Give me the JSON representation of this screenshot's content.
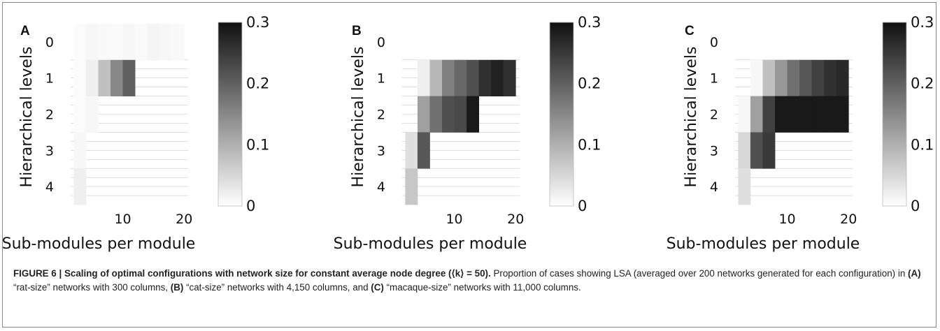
{
  "caption": {
    "bold_prefix": "FIGURE 6 | Scaling of optimal configurations with network size for constant average node degree (⟨k⟩ = 50).",
    "text_1": " Proportion of cases showing LSA (averaged over 200 networks generated for each configuration) in ",
    "label_a": "(A)",
    "text_2": " “rat-size” networks with 300 columns, ",
    "label_b": "(B)",
    "text_3": " “cat-size” networks with 4,150 columns, and ",
    "label_c": "(C)",
    "text_4": " “macaque-size” networks with 11,000 columns."
  },
  "colors": {
    "low": "#ffffff",
    "high": "#111111",
    "grid_line": "#a0a0a0"
  },
  "chart_data": [
    {
      "type": "heatmap",
      "panel": "A",
      "xlabel": "Sub-modules per module",
      "ylabel": "Hierarchical levels",
      "x_ticks": [
        10,
        20
      ],
      "y_ticks": [
        0,
        1,
        2,
        3,
        4
      ],
      "xlim": [
        1.5,
        21
      ],
      "ylim": [
        4.5,
        -0.5
      ],
      "colorbar": {
        "ticks": [
          0,
          0.1,
          0.2,
          0.3
        ],
        "tick_labels": [
          "0",
          "0.1",
          "0.2",
          "0.3"
        ],
        "range": [
          0,
          0.3
        ]
      },
      "levels": [
        {
          "level": 0,
          "x": [
            3,
            5,
            7,
            9,
            11,
            13,
            15,
            17,
            19
          ],
          "values": [
            0.005,
            0.01,
            0.008,
            0.006,
            0.01,
            0.006,
            0.012,
            0.01,
            0.008
          ]
        },
        {
          "level": 1,
          "x": [
            3,
            5,
            7,
            9,
            11
          ],
          "values": [
            0.005,
            0.02,
            0.08,
            0.15,
            0.2
          ]
        },
        {
          "level": 2,
          "x": [
            3,
            5
          ],
          "values": [
            0.005,
            0.01
          ]
        },
        {
          "level": 3,
          "x": [
            3
          ],
          "values": [
            0.01
          ]
        },
        {
          "level": 4,
          "x": [
            3
          ],
          "values": [
            0.02
          ]
        }
      ]
    },
    {
      "type": "heatmap",
      "panel": "B",
      "xlabel": "Sub-modules per module",
      "ylabel": "Hierarchical levels",
      "x_ticks": [
        10,
        20
      ],
      "y_ticks": [
        0,
        1,
        2,
        3,
        4
      ],
      "xlim": [
        1.5,
        21
      ],
      "ylim": [
        4.5,
        -0.5
      ],
      "colorbar": {
        "ticks": [
          0,
          0.1,
          0.2,
          0.3
        ],
        "tick_labels": [
          "0",
          "0.1",
          "0.2",
          "0.3"
        ],
        "range": [
          0,
          0.3
        ]
      },
      "levels": [
        {
          "level": 1,
          "x": [
            5,
            7,
            9,
            11,
            13,
            15,
            17,
            19
          ],
          "values": [
            0.02,
            0.09,
            0.16,
            0.19,
            0.22,
            0.26,
            0.28,
            0.26
          ]
        },
        {
          "level": 2,
          "x": [
            5,
            7,
            9,
            11,
            13
          ],
          "values": [
            0.12,
            0.18,
            0.22,
            0.23,
            0.29
          ]
        },
        {
          "level": 3,
          "x": [
            3,
            5
          ],
          "values": [
            0.04,
            0.21
          ]
        },
        {
          "level": 4,
          "x": [
            3
          ],
          "values": [
            0.07
          ]
        }
      ]
    },
    {
      "type": "heatmap",
      "panel": "C",
      "xlabel": "Sub-modules per module",
      "ylabel": "Hierarchical levels",
      "x_ticks": [
        10,
        20
      ],
      "y_ticks": [
        0,
        1,
        2,
        3,
        4
      ],
      "xlim": [
        1.5,
        21
      ],
      "ylim": [
        4.5,
        -0.5
      ],
      "colorbar": {
        "ticks": [
          0,
          0.1,
          0.2,
          0.3
        ],
        "tick_labels": [
          "0",
          "0.1",
          "0.2",
          "0.3"
        ],
        "range": [
          0,
          0.3
        ]
      },
      "levels": [
        {
          "level": 1,
          "x": [
            5,
            7,
            9,
            11,
            13,
            15,
            17,
            19
          ],
          "values": [
            0.01,
            0.08,
            0.13,
            0.18,
            0.21,
            0.24,
            0.26,
            0.27
          ]
        },
        {
          "level": 2,
          "x": [
            3,
            5,
            7,
            9,
            11,
            13,
            15,
            17,
            19
          ],
          "values": [
            0.01,
            0.12,
            0.24,
            0.29,
            0.29,
            0.29,
            0.29,
            0.29,
            0.29
          ]
        },
        {
          "level": 3,
          "x": [
            3,
            5,
            7
          ],
          "values": [
            0.05,
            0.22,
            0.25
          ]
        },
        {
          "level": 4,
          "x": [
            3
          ],
          "values": [
            0.04
          ]
        }
      ]
    }
  ]
}
